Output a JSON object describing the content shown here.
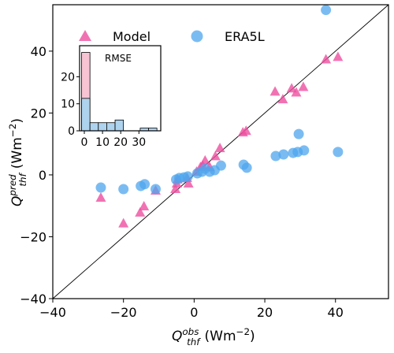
{
  "chart_data": [
    {
      "type": "scatter",
      "xlabel": {
        "base": "Q",
        "sub": "thf",
        "sup": "obs",
        "unit": "(Wm",
        "unit_sup": "−2",
        "end": ")"
      },
      "ylabel": {
        "base": "Q",
        "sub": "thf",
        "sup": "pred",
        "unit": "(Wm",
        "unit_sup": "−2",
        "end": ")"
      },
      "xlim": [
        -40,
        55
      ],
      "ylim": [
        -40,
        55
      ],
      "xticks": [
        {
          "value": -40,
          "label": "−40"
        },
        {
          "value": -20,
          "label": "−20"
        },
        0,
        20,
        40
      ],
      "yticks": [
        {
          "value": -40,
          "label": "−40"
        },
        {
          "value": -20,
          "label": "−20"
        },
        0,
        20,
        40
      ],
      "series": [
        {
          "name": "Model",
          "color": "#ee4fa0",
          "marker": "triangle",
          "x": [
            -26.4,
            -20,
            -15.3,
            -14.2,
            -10.9,
            -5.3,
            -4.9,
            -4.7,
            -1.6,
            -2,
            0.7,
            1.8,
            2.4,
            3.1,
            4.4,
            6,
            7.3,
            13.8,
            14.7,
            22.9,
            25.1,
            27.6,
            28.9,
            30.9,
            37.3,
            40.7
          ],
          "values": [
            -7.4,
            -15.7,
            -12.2,
            -10.2,
            -5.1,
            -4.6,
            -2.8,
            -1.5,
            -2.8,
            -1,
            1,
            2.5,
            3,
            4.6,
            2.5,
            6,
            8.6,
            13.7,
            14.2,
            26.9,
            24.4,
            27.9,
            26.6,
            28.4,
            37.3,
            38.1
          ]
        },
        {
          "name": "ERA5L",
          "color": "#4da6ee",
          "marker": "circle",
          "x": [
            -26.4,
            -20,
            -15.1,
            -14,
            -10.9,
            -5.1,
            -4.2,
            -2.9,
            -1.8,
            0.9,
            2.2,
            3.1,
            4.4,
            5.8,
            7.6,
            14,
            14.9,
            23.1,
            25.3,
            28,
            29.3,
            31.1,
            29.6,
            37.3,
            40.7
          ],
          "values": [
            -4.1,
            -4.6,
            -3.6,
            -3,
            -4.6,
            -1.5,
            -1,
            -0.8,
            -0.5,
            0.5,
            1,
            2,
            1,
            1.5,
            3,
            3.3,
            2.3,
            6.1,
            6.6,
            7.1,
            7.4,
            7.9,
            13.2,
            53.3,
            7.4
          ]
        }
      ]
    },
    {
      "type": "histogram",
      "title": "RMSE",
      "xlim": [
        -2.6,
        42
      ],
      "ylim": [
        0,
        31.5
      ],
      "xticks": [
        0,
        10,
        20,
        30
      ],
      "yticks": [
        0,
        10,
        20
      ],
      "bins": [
        -1.5,
        3.1,
        7.7,
        12.3,
        16.9,
        21.5,
        26.1,
        30.7,
        35.3,
        39.9
      ],
      "series": [
        {
          "name": "Model",
          "color": "#f7c4d4",
          "values": [
            29,
            0,
            0,
            0,
            0,
            0,
            0,
            0,
            0
          ]
        },
        {
          "name": "ERA5L",
          "color": "#aed3ef",
          "values": [
            12,
            3,
            3,
            3,
            4,
            0,
            0,
            1,
            1
          ]
        }
      ]
    }
  ]
}
